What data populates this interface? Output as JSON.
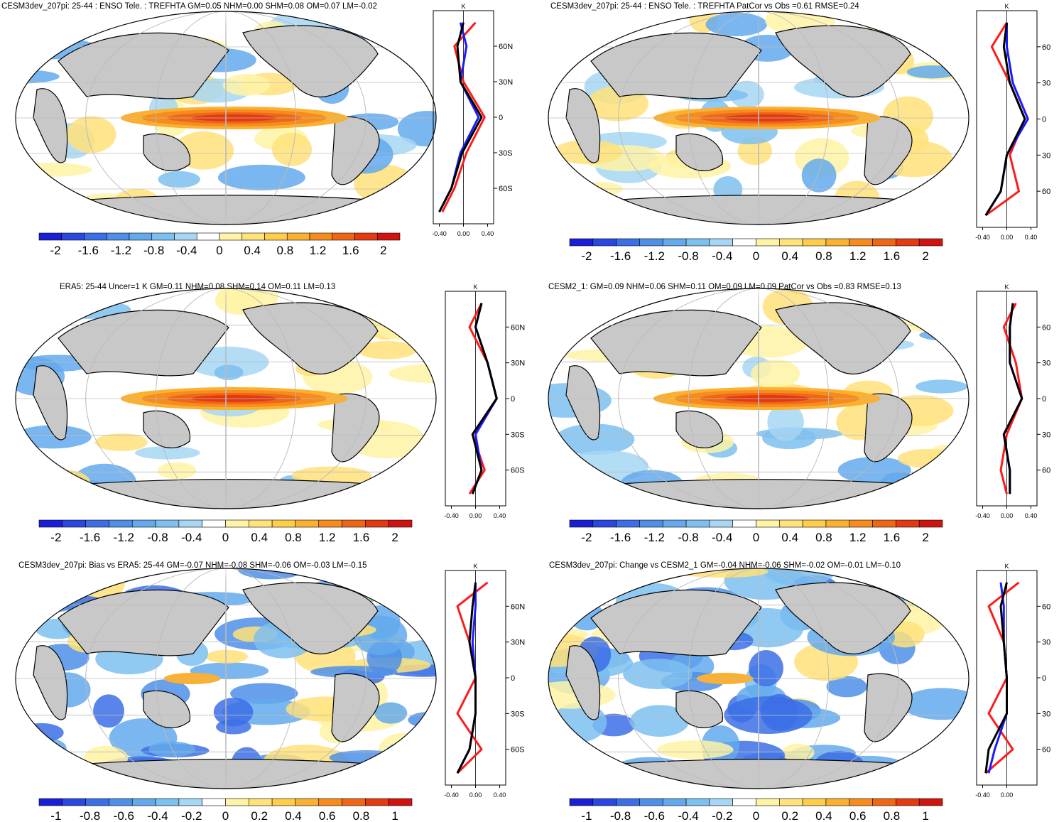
{
  "colors": {
    "scale_main": [
      "#1a1fd6",
      "#2a48e0",
      "#3c6fe6",
      "#4f8fe8",
      "#63a9ec",
      "#7cc0f0",
      "#a6d6f3",
      "#ffffff",
      "#fff3a6",
      "#ffe27a",
      "#ffcd4a",
      "#fbb031",
      "#f68c1e",
      "#ef6616",
      "#e43a12",
      "#cf1410"
    ],
    "scale_diff": [
      "#1a1fd6",
      "#2a48e0",
      "#3c6fe6",
      "#4f8fe8",
      "#63a9ec",
      "#7cc0f0",
      "#a6d6f3",
      "#ffffff",
      "#fff3a6",
      "#ffe27a",
      "#ffcd4a",
      "#fbb031",
      "#f68c1e",
      "#ef6616",
      "#e43a12",
      "#cf1410"
    ],
    "land": "#c8c8c8",
    "ocean": "#ffffff",
    "line_red": "#ff1a1a",
    "line_blue": "#1a1aff",
    "line_black": "#000000"
  },
  "panels": [
    {
      "title": "CESM3dev_207pi: 25-44 : ENSO Tele. : TREFHTA GM=0.05 NHM=0.00 SHM=0.08 OM=0.07 LM=-0.02",
      "cbar_labels": [
        "-2",
        "-1.6",
        "-1.2",
        "-0.8",
        "-0.4",
        "0",
        "0.4",
        "0.8",
        "1.2",
        "1.6",
        "2"
      ],
      "unit": "K",
      "lat_labels": [
        "60N",
        "30N",
        "0",
        "30S",
        "60S"
      ],
      "x_ticks": [
        "-0.40",
        "0.00",
        "0.40"
      ]
    },
    {
      "title": "CESM3dev_207pi: 25-44 : ENSO Tele. : TREFHTA PatCor vs Obs =0.61 RMSE=0.24",
      "cbar_labels": [
        "-2",
        "-1.6",
        "-1.2",
        "-0.8",
        "-0.4",
        "0",
        "0.4",
        "0.8",
        "1.2",
        "1.6",
        "2"
      ],
      "unit": "K",
      "lat_labels": [
        "60",
        "30",
        "0",
        "30",
        "60"
      ],
      "x_ticks": [
        "-0.40",
        "0.00",
        "0.40"
      ]
    },
    {
      "title": "ERA5: 25-44 Uncer=1 K GM=0.11 NHM=0.08 SHM=0.14 OM=0.11 LM=0.13",
      "cbar_labels": [
        "-2",
        "-1.6",
        "-1.2",
        "-0.8",
        "-0.4",
        "0",
        "0.4",
        "0.8",
        "1.2",
        "1.6",
        "2"
      ],
      "unit": "K",
      "lat_labels": [
        "60N",
        "30N",
        "0",
        "30S",
        "60S"
      ],
      "x_ticks": [
        "-0.40",
        "0.00",
        "0.40"
      ]
    },
    {
      "title": "CESM2_1: GM=0.09 NHM=0.06 SHM=0.11 OM=0.09 LM=0.09 PatCor vs Obs =0.83 RMSE=0.13",
      "cbar_labels": [
        "-2",
        "-1.6",
        "-1.2",
        "-0.8",
        "-0.4",
        "0",
        "0.4",
        "0.8",
        "1.2",
        "1.6",
        "2"
      ],
      "unit": "K",
      "lat_labels": [
        "60",
        "30",
        "0",
        "30",
        "60"
      ],
      "x_ticks": [
        "-0.40",
        "0.00",
        "0.40"
      ]
    },
    {
      "title": "CESM3dev_207pi: Bias vs ERA5: 25-44 GM=-0.07 NHM=-0.08 SHM=-0.06 OM=-0.03 LM=-0.15",
      "cbar_labels": [
        "-1",
        "-0.8",
        "-0.6",
        "-0.4",
        "-0.2",
        "0",
        "0.2",
        "0.4",
        "0.6",
        "0.8",
        "1"
      ],
      "unit": "K",
      "lat_labels": [
        "60N",
        "30N",
        "0",
        "30S",
        "60S"
      ],
      "x_ticks": [
        "-0.40",
        "0.00",
        "0.40"
      ]
    },
    {
      "title": "CESM3dev_207pi: Change vs CESM2_1 GM=-0.04 NHM=-0.06 SHM=-0.02 OM=-0.01 LM=-0.10",
      "cbar_labels": [
        "-1",
        "-0.8",
        "-0.6",
        "-0.4",
        "-0.2",
        "0",
        "0.2",
        "0.4",
        "0.6",
        "0.8",
        "1"
      ],
      "unit": "K",
      "lat_labels": [
        "60",
        "30",
        "0",
        "30",
        "60"
      ],
      "x_ticks": [
        "-0.40",
        "0.00"
      ]
    }
  ],
  "chart_data": [
    {
      "type": "heatmap",
      "title": "CESM3dev_207pi: 25-44 : ENSO Tele. : TREFHTA GM=0.05 NHM=0.00 SHM=0.08 OM=0.07 LM=-0.02",
      "colorbar_range": [
        -2,
        2
      ],
      "profile": {
        "lat": [
          -80,
          -60,
          -30,
          0,
          30,
          60,
          80
        ],
        "series": [
          {
            "name": "red",
            "values": [
              -0.35,
              -0.15,
              0.05,
              0.35,
              0.0,
              -0.15,
              0.2
            ]
          },
          {
            "name": "blue",
            "values": [
              -0.4,
              -0.2,
              -0.05,
              0.25,
              -0.05,
              0.05,
              -0.05
            ]
          },
          {
            "name": "black",
            "values": [
              -0.4,
              -0.2,
              -0.02,
              0.3,
              -0.05,
              -0.1,
              0.0
            ]
          }
        ]
      }
    },
    {
      "type": "heatmap",
      "title": "CESM3dev_207pi: 25-44 : ENSO Tele. : TREFHTA PatCor vs Obs =0.61 RMSE=0.24",
      "colorbar_range": [
        -2,
        2
      ],
      "profile": {
        "lat": [
          -80,
          -60,
          -30,
          0,
          30,
          60,
          80
        ],
        "series": [
          {
            "name": "red",
            "values": [
              -0.35,
              0.2,
              0.05,
              0.3,
              0.05,
              -0.25,
              0.0
            ]
          },
          {
            "name": "blue",
            "values": [
              -0.35,
              -0.1,
              0.0,
              0.35,
              0.1,
              0.0,
              0.0
            ]
          },
          {
            "name": "black",
            "values": [
              -0.35,
              -0.1,
              0.0,
              0.3,
              0.05,
              -0.05,
              0.0
            ]
          }
        ]
      }
    },
    {
      "type": "heatmap",
      "title": "ERA5: 25-44 Uncer=1 K GM=0.11 NHM=0.08 SHM=0.14 OM=0.11 LM=0.13",
      "colorbar_range": [
        -2,
        2
      ],
      "profile": {
        "lat": [
          -80,
          -60,
          -30,
          0,
          30,
          60,
          80
        ],
        "series": [
          {
            "name": "red",
            "values": [
              -0.1,
              0.15,
              -0.05,
              0.35,
              0.2,
              -0.1,
              0.1
            ]
          },
          {
            "name": "blue",
            "values": [
              -0.05,
              0.1,
              0.0,
              0.35,
              0.2,
              0.0,
              0.1
            ]
          },
          {
            "name": "black",
            "values": [
              -0.05,
              0.1,
              -0.05,
              0.35,
              0.2,
              0.0,
              0.1
            ]
          }
        ]
      }
    },
    {
      "type": "heatmap",
      "title": "CESM2_1: GM=0.09 NHM=0.06 SHM=0.11 OM=0.09 LM=0.09 PatCor vs Obs =0.83 RMSE=0.13",
      "colorbar_range": [
        -2,
        2
      ],
      "profile": {
        "lat": [
          -80,
          -60,
          -30,
          0,
          30,
          60,
          80
        ],
        "series": [
          {
            "name": "red",
            "values": [
              0.0,
              -0.1,
              0.0,
              0.25,
              0.15,
              -0.05,
              0.15
            ]
          },
          {
            "name": "blue",
            "values": [
              0.05,
              0.05,
              -0.05,
              0.25,
              0.05,
              0.05,
              0.1
            ]
          },
          {
            "name": "black",
            "values": [
              0.05,
              0.05,
              -0.05,
              0.25,
              0.05,
              0.05,
              0.1
            ]
          }
        ]
      }
    },
    {
      "type": "heatmap",
      "title": "CESM3dev_207pi: Bias vs ERA5: 25-44 GM=-0.07 NHM=-0.08 SHM=-0.06 OM=-0.03 LM=-0.15",
      "colorbar_range": [
        -1,
        1
      ],
      "profile": {
        "lat": [
          -80,
          -60,
          -30,
          0,
          30,
          60,
          80
        ],
        "series": [
          {
            "name": "red",
            "values": [
              -0.3,
              0.1,
              -0.3,
              0.0,
              -0.1,
              -0.3,
              0.2
            ]
          },
          {
            "name": "blue",
            "values": [
              -0.3,
              -0.1,
              0.0,
              0.0,
              -0.05,
              0.0,
              0.0
            ]
          },
          {
            "name": "black",
            "values": [
              -0.3,
              -0.1,
              0.0,
              0.0,
              -0.1,
              -0.05,
              0.0
            ]
          }
        ]
      }
    },
    {
      "type": "heatmap",
      "title": "CESM3dev_207pi: Change vs CESM2_1 GM=-0.04 NHM=-0.06 SHM=-0.02 OM=-0.01 LM=-0.10",
      "colorbar_range": [
        -1,
        1
      ],
      "profile": {
        "lat": [
          -80,
          -60,
          -30,
          0,
          30,
          60,
          80
        ],
        "series": [
          {
            "name": "red",
            "values": [
              -0.35,
              0.1,
              -0.3,
              0.0,
              -0.05,
              -0.3,
              0.2
            ]
          },
          {
            "name": "blue",
            "values": [
              -0.3,
              -0.2,
              0.0,
              0.0,
              -0.05,
              -0.05,
              -0.1
            ]
          },
          {
            "name": "black",
            "values": [
              -0.35,
              -0.3,
              0.0,
              0.0,
              -0.05,
              -0.1,
              0.0
            ]
          }
        ]
      }
    }
  ]
}
